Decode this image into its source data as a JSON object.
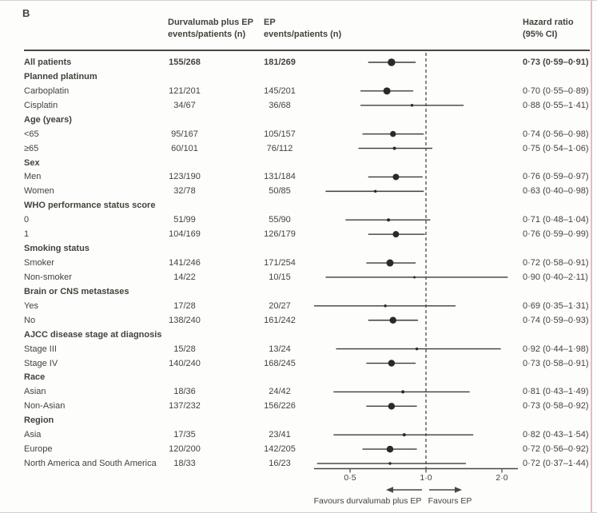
{
  "panel_label": "B",
  "header": {
    "treatment_line1": "Durvalumab plus EP",
    "treatment_line2": "events/patients (n)",
    "control_line1": "EP",
    "control_line2": "events/patients (n)",
    "hazard_line1": "Hazard ratio",
    "hazard_line2": "(95% CI)"
  },
  "colors": {
    "text": "#454239",
    "line": "#3f3d38",
    "marker": "#2b2a26",
    "axis": "#4a4742",
    "edge_right": "#e3bcc0"
  },
  "chart_data": {
    "type": "forest",
    "x_scale": "log",
    "x_ticks": [
      {
        "v": 0.5,
        "label": "0·5"
      },
      {
        "v": 1.0,
        "label": "1·0"
      },
      {
        "v": 2.0,
        "label": "2·0"
      }
    ],
    "reference_line": 1.0,
    "favours_left": "Favours durvalumab plus EP",
    "favours_right": "Favours EP",
    "rows": [
      {
        "label": "All patients",
        "group": false,
        "bold": true,
        "treatment": "155/268",
        "control": "181/269",
        "hr": 0.73,
        "lo": 0.59,
        "hi": 0.91,
        "hr_text": "0·73 (0·59–0·91)",
        "marker": 9.5
      },
      {
        "label": "Planned platinum",
        "group": true
      },
      {
        "label": "Carboplatin",
        "group": false,
        "treatment": "121/201",
        "control": "145/201",
        "hr": 0.7,
        "lo": 0.55,
        "hi": 0.89,
        "hr_text": "0·70 (0·55–0·89)",
        "marker": 9
      },
      {
        "label": "Cisplatin",
        "group": false,
        "treatment": "34/67",
        "control": "36/68",
        "hr": 0.88,
        "lo": 0.55,
        "hi": 1.41,
        "hr_text": "0·88 (0·55–1·41)",
        "marker": 3.5
      },
      {
        "label": "Age (years)",
        "group": true
      },
      {
        "label": "<65",
        "group": false,
        "treatment": "95/167",
        "control": "105/157",
        "hr": 0.74,
        "lo": 0.56,
        "hi": 0.98,
        "hr_text": "0·74 (0·56–0·98)",
        "marker": 7.5
      },
      {
        "label": "≥65",
        "group": false,
        "treatment": "60/101",
        "control": "76/112",
        "hr": 0.75,
        "lo": 0.54,
        "hi": 1.06,
        "hr_text": "0·75 (0·54–1·06)",
        "marker": 4
      },
      {
        "label": "Sex",
        "group": true
      },
      {
        "label": "Men",
        "group": false,
        "treatment": "123/190",
        "control": "131/184",
        "hr": 0.76,
        "lo": 0.59,
        "hi": 0.97,
        "hr_text": "0·76 (0·59–0·97)",
        "marker": 8
      },
      {
        "label": "Women",
        "group": false,
        "treatment": "32/78",
        "control": "50/85",
        "hr": 0.63,
        "lo": 0.4,
        "hi": 0.98,
        "hr_text": "0·63 (0·40–0·98)",
        "marker": 3.5
      },
      {
        "label": "WHO performance status score",
        "group": true
      },
      {
        "label": "0",
        "group": false,
        "treatment": "51/99",
        "control": "55/90",
        "hr": 0.71,
        "lo": 0.48,
        "hi": 1.04,
        "hr_text": "0·71 (0·48–1·04)",
        "marker": 4
      },
      {
        "label": "1",
        "group": false,
        "treatment": "104/169",
        "control": "126/179",
        "hr": 0.76,
        "lo": 0.59,
        "hi": 0.99,
        "hr_text": "0·76 (0·59–0·99)",
        "marker": 8
      },
      {
        "label": "Smoking status",
        "group": true
      },
      {
        "label": "Smoker",
        "group": false,
        "treatment": "141/246",
        "control": "171/254",
        "hr": 0.72,
        "lo": 0.58,
        "hi": 0.91,
        "hr_text": "0·72 (0·58–0·91)",
        "marker": 9
      },
      {
        "label": "Non-smoker",
        "group": false,
        "treatment": "14/22",
        "control": "10/15",
        "hr": 0.9,
        "lo": 0.4,
        "hi": 2.11,
        "hr_text": "0·90 (0·40–2·11)",
        "marker": 3
      },
      {
        "label": "Brain or CNS metastases",
        "group": true
      },
      {
        "label": "Yes",
        "group": false,
        "treatment": "17/28",
        "control": "20/27",
        "hr": 0.69,
        "lo": 0.35,
        "hi": 1.31,
        "hr_text": "0·69 (0·35–1·31)",
        "marker": 3.5
      },
      {
        "label": "No",
        "group": false,
        "treatment": "138/240",
        "control": "161/242",
        "hr": 0.74,
        "lo": 0.59,
        "hi": 0.93,
        "hr_text": "0·74 (0·59–0·93)",
        "marker": 8.5
      },
      {
        "label": "AJCC disease stage at diagnosis",
        "group": true
      },
      {
        "label": "Stage III",
        "group": false,
        "treatment": "15/28",
        "control": "13/24",
        "hr": 0.92,
        "lo": 0.44,
        "hi": 1.98,
        "hr_text": "0·92 (0·44–1·98)",
        "marker": 3.5
      },
      {
        "label": "Stage IV",
        "group": false,
        "treatment": "140/240",
        "control": "168/245",
        "hr": 0.73,
        "lo": 0.58,
        "hi": 0.91,
        "hr_text": "0·73 (0·58–0·91)",
        "marker": 8.5
      },
      {
        "label": "Race",
        "group": true
      },
      {
        "label": "Asian",
        "group": false,
        "treatment": "18/36",
        "control": "24/42",
        "hr": 0.81,
        "lo": 0.43,
        "hi": 1.49,
        "hr_text": "0·81 (0·43–1·49)",
        "marker": 4
      },
      {
        "label": "Non-Asian",
        "group": false,
        "treatment": "137/232",
        "control": "156/226",
        "hr": 0.73,
        "lo": 0.58,
        "hi": 0.92,
        "hr_text": "0·73 (0·58–0·92)",
        "marker": 8.5
      },
      {
        "label": "Region",
        "group": true
      },
      {
        "label": "Asia",
        "group": false,
        "treatment": "17/35",
        "control": "23/41",
        "hr": 0.82,
        "lo": 0.43,
        "hi": 1.54,
        "hr_text": "0·82 (0·43–1·54)",
        "marker": 4
      },
      {
        "label": "Europe",
        "group": false,
        "treatment": "120/200",
        "control": "142/205",
        "hr": 0.72,
        "lo": 0.56,
        "hi": 0.92,
        "hr_text": "0·72 (0·56–0·92)",
        "marker": 8.5
      },
      {
        "label": "North America and South America",
        "group": false,
        "treatment": "18/33",
        "control": "16/23",
        "hr": 0.72,
        "lo": 0.37,
        "hi": 1.44,
        "hr_text": "0·72 (0·37–1·44)",
        "marker": 3.5
      }
    ]
  }
}
